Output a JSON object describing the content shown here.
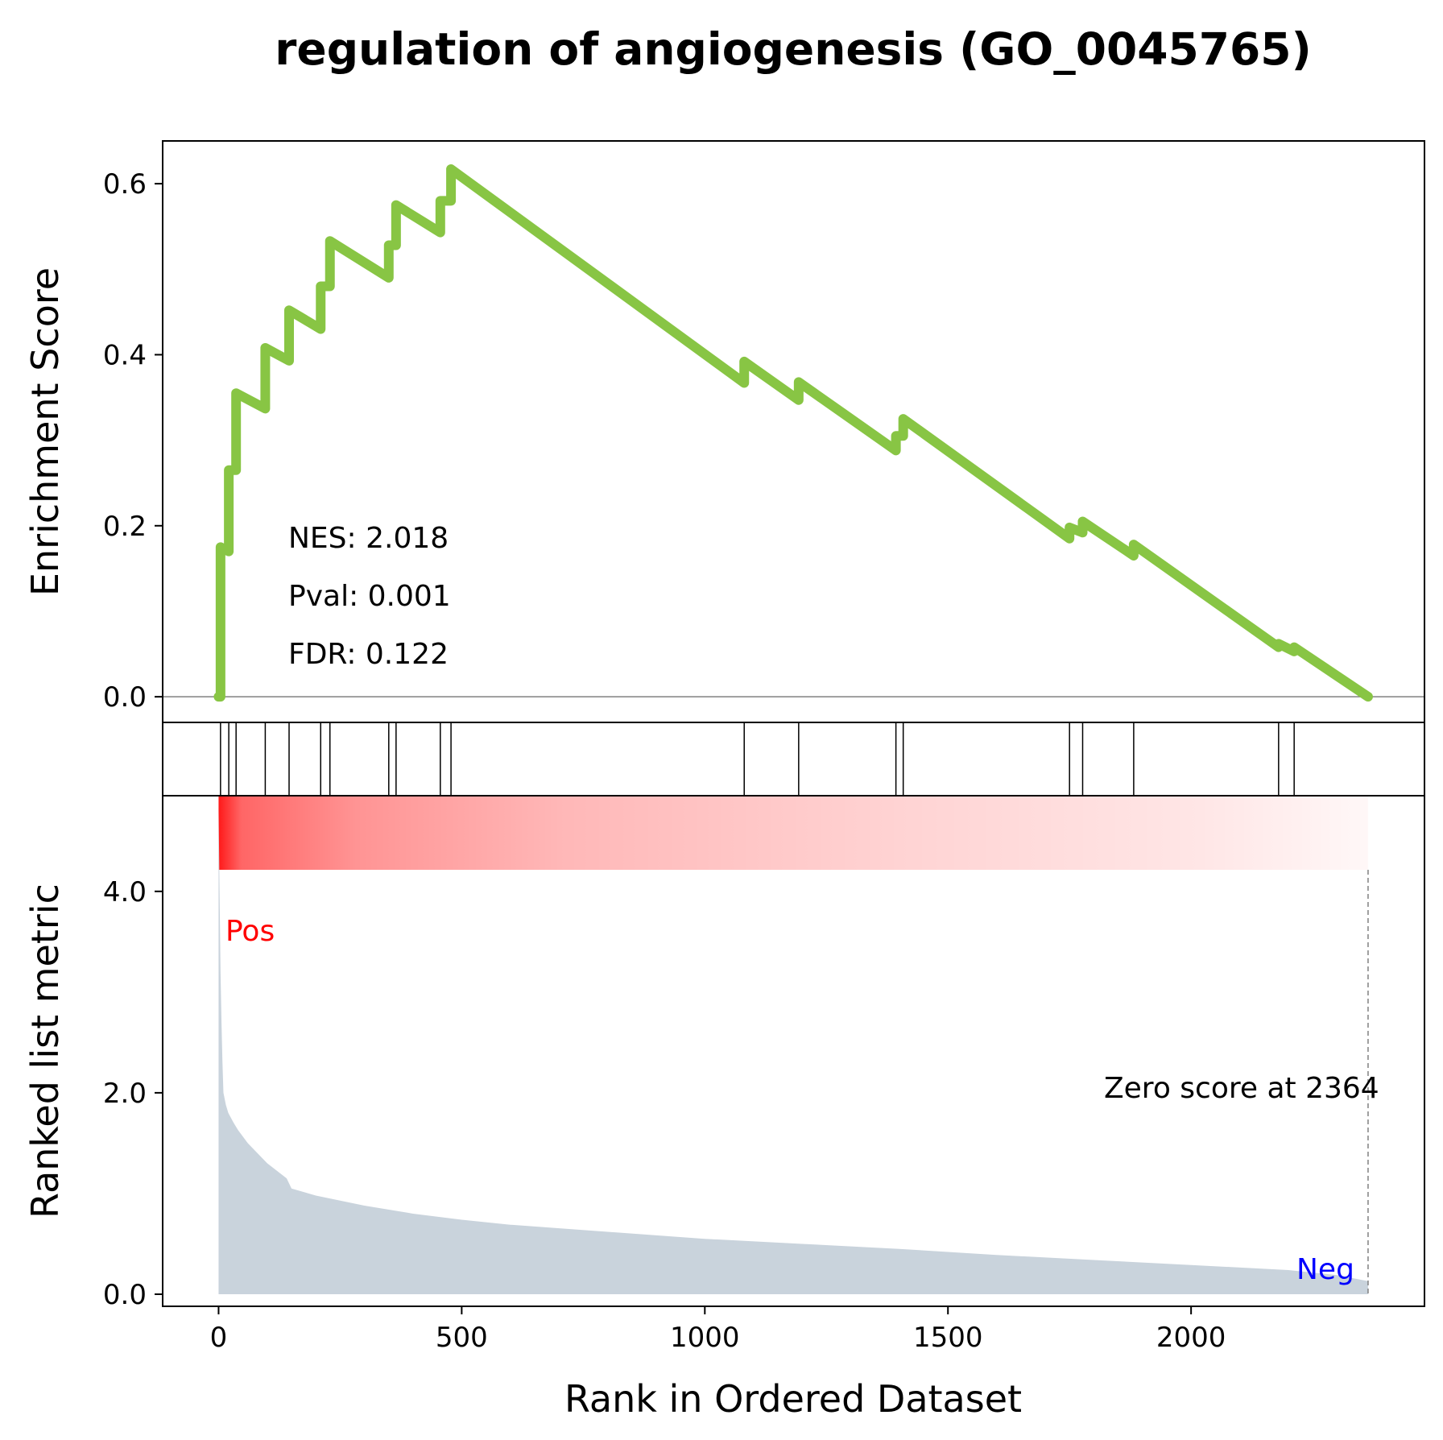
{
  "chart_data": {
    "type": "line",
    "title": "regulation of angiogenesis (GO_0045765)",
    "xlabel": "Rank in Ordered Dataset",
    "xlim": [
      -115,
      2480
    ],
    "xticks": [
      0,
      500,
      1000,
      1500,
      2000
    ],
    "xtick_labels": [
      "0",
      "500",
      "1000",
      "1500",
      "2000"
    ],
    "enrichment": {
      "ylabel": "Enrichment Score",
      "ylim": [
        -0.03,
        0.65
      ],
      "yticks": [
        0.0,
        0.2,
        0.4,
        0.6
      ],
      "ytick_labels": [
        "0.0",
        "0.2",
        "0.4",
        "0.6"
      ],
      "color": "#88c544",
      "baseline_color": "#808080",
      "points": [
        [
          0,
          0.0
        ],
        [
          4,
          0.0
        ],
        [
          4,
          0.175
        ],
        [
          21,
          0.17
        ],
        [
          21,
          0.265
        ],
        [
          36,
          0.265
        ],
        [
          36,
          0.355
        ],
        [
          96,
          0.337
        ],
        [
          96,
          0.408
        ],
        [
          145,
          0.393
        ],
        [
          145,
          0.452
        ],
        [
          210,
          0.43
        ],
        [
          210,
          0.48
        ],
        [
          229,
          0.48
        ],
        [
          229,
          0.533
        ],
        [
          350,
          0.49
        ],
        [
          350,
          0.528
        ],
        [
          365,
          0.528
        ],
        [
          365,
          0.575
        ],
        [
          456,
          0.543
        ],
        [
          456,
          0.58
        ],
        [
          478,
          0.58
        ],
        [
          478,
          0.617
        ],
        [
          1081,
          0.367
        ],
        [
          1081,
          0.392
        ],
        [
          1193,
          0.347
        ],
        [
          1193,
          0.368
        ],
        [
          1393,
          0.288
        ],
        [
          1393,
          0.305
        ],
        [
          1408,
          0.305
        ],
        [
          1408,
          0.325
        ],
        [
          1750,
          0.185
        ],
        [
          1750,
          0.198
        ],
        [
          1777,
          0.192
        ],
        [
          1777,
          0.205
        ],
        [
          1882,
          0.165
        ],
        [
          1882,
          0.178
        ],
        [
          2180,
          0.058
        ],
        [
          2180,
          0.062
        ],
        [
          2212,
          0.053
        ],
        [
          2212,
          0.058
        ],
        [
          2364,
          0.0
        ]
      ]
    },
    "annotations": {
      "nes": "NES: 2.018",
      "pval": "Pval: 0.001",
      "fdr": "FDR: 0.122"
    },
    "hits": [
      4,
      21,
      36,
      96,
      145,
      210,
      229,
      350,
      365,
      456,
      478,
      1081,
      1193,
      1393,
      1408,
      1750,
      1777,
      1882,
      2180,
      2212
    ],
    "ranked_metric": {
      "ylabel": "Ranked list metric",
      "ylim": [
        -0.12,
        4.95
      ],
      "yticks": [
        0.0,
        2.0,
        4.0
      ],
      "ytick_labels": [
        "0.0",
        "2.0",
        "4.0"
      ],
      "fill_color": "#c9d3dc",
      "heat_color": "#ff0000",
      "zero_score_text": "Zero score at 2364",
      "zero_score_rank": 2364,
      "pos_label": "Pos",
      "pos_color": "#ff0000",
      "neg_label": "Neg",
      "neg_color": "#0000ff",
      "points": [
        [
          0,
          4.85
        ],
        [
          2,
          4.0
        ],
        [
          4,
          3.2
        ],
        [
          6,
          2.7
        ],
        [
          8,
          2.3
        ],
        [
          10,
          2.0
        ],
        [
          15,
          1.88
        ],
        [
          20,
          1.8
        ],
        [
          30,
          1.71
        ],
        [
          40,
          1.63
        ],
        [
          60,
          1.5
        ],
        [
          80,
          1.4
        ],
        [
          100,
          1.3
        ],
        [
          140,
          1.15
        ],
        [
          150,
          1.05
        ],
        [
          200,
          0.98
        ],
        [
          300,
          0.88
        ],
        [
          400,
          0.8
        ],
        [
          500,
          0.74
        ],
        [
          600,
          0.69
        ],
        [
          800,
          0.62
        ],
        [
          1000,
          0.55
        ],
        [
          1200,
          0.5
        ],
        [
          1400,
          0.45
        ],
        [
          1600,
          0.39
        ],
        [
          1800,
          0.34
        ],
        [
          2000,
          0.29
        ],
        [
          2200,
          0.24
        ],
        [
          2300,
          0.19
        ],
        [
          2364,
          0.13
        ]
      ]
    }
  }
}
